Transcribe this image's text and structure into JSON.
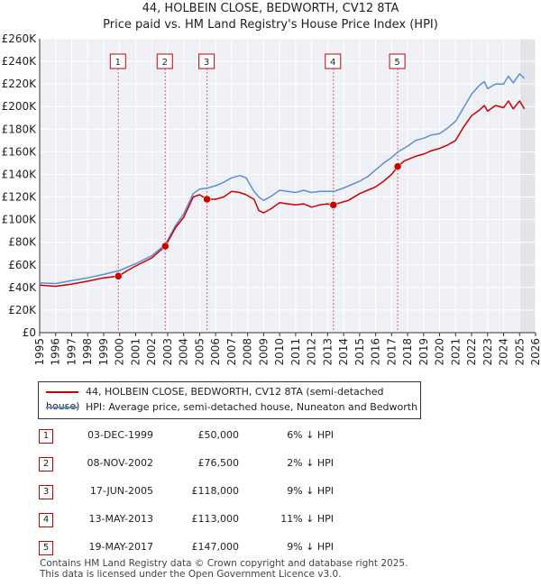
{
  "title": "44, HOLBEIN CLOSE, BEDWORTH, CV12 8TA",
  "subtitle": "Price paid vs. HM Land Registry's House Price Index (HPI)",
  "chart_data": {
    "type": "line",
    "xlim": [
      1995,
      2026
    ],
    "ylim": [
      0,
      260000
    ],
    "x_ticks": [
      "1995",
      "1996",
      "1997",
      "1998",
      "1999",
      "2000",
      "2001",
      "2002",
      "2003",
      "2004",
      "2005",
      "2006",
      "2007",
      "2008",
      "2009",
      "2010",
      "2011",
      "2012",
      "2013",
      "2014",
      "2015",
      "2016",
      "2017",
      "2018",
      "2019",
      "2020",
      "2021",
      "2022",
      "2023",
      "2024",
      "2025",
      "2026"
    ],
    "y_ticks": [
      "£0",
      "£20K",
      "£40K",
      "£60K",
      "£80K",
      "£100K",
      "£120K",
      "£140K",
      "£160K",
      "£180K",
      "£200K",
      "£220K",
      "£240K",
      "£260K"
    ],
    "y_tick_values": [
      0,
      20000,
      40000,
      60000,
      80000,
      100000,
      120000,
      140000,
      160000,
      180000,
      200000,
      220000,
      240000,
      260000
    ],
    "series": [
      {
        "name": "44, HOLBEIN CLOSE, BEDWORTH, CV12 8TA (semi-detached house)",
        "color": "#cc0000",
        "x": [
          1995.0,
          1996.0,
          1997.0,
          1998.0,
          1999.0,
          1999.92,
          2000.5,
          2001.0,
          2002.0,
          2002.85,
          2003.5,
          2004.0,
          2004.6,
          2005.0,
          2005.46,
          2006.0,
          2006.5,
          2007.0,
          2007.5,
          2007.9,
          2008.4,
          2008.7,
          2009.0,
          2009.5,
          2010.0,
          2010.5,
          2011.0,
          2011.5,
          2012.0,
          2012.5,
          2013.0,
          2013.36,
          2013.8,
          2014.3,
          2015.0,
          2015.5,
          2016.0,
          2016.5,
          2017.0,
          2017.38,
          2017.8,
          2018.5,
          2019.0,
          2019.5,
          2020.0,
          2020.5,
          2021.0,
          2021.5,
          2022.0,
          2022.5,
          2022.8,
          2023.0,
          2023.5,
          2024.0,
          2024.3,
          2024.6,
          2025.0,
          2025.3
        ],
        "values": [
          42000,
          41000,
          43000,
          45500,
          48500,
          50000,
          55000,
          59000,
          66000,
          76500,
          93000,
          102000,
          120000,
          122000,
          118000,
          118000,
          120000,
          125000,
          124000,
          122000,
          118000,
          108000,
          106000,
          110000,
          115000,
          114000,
          113000,
          114000,
          111000,
          113000,
          114000,
          113000,
          115000,
          117000,
          123000,
          126000,
          129000,
          134000,
          140000,
          147000,
          152000,
          156000,
          158000,
          161000,
          163000,
          166000,
          170000,
          182000,
          192000,
          197000,
          201000,
          196000,
          201000,
          199000,
          205000,
          198000,
          205000,
          198000
        ]
      },
      {
        "name": "HPI: Average price, semi-detached house, Nuneaton and Bedworth",
        "color": "#5b8fd6",
        "x": [
          1995.0,
          1996.0,
          1997.0,
          1998.0,
          1999.0,
          2000.0,
          2001.0,
          2002.0,
          2002.85,
          2003.5,
          2004.0,
          2004.6,
          2005.0,
          2005.5,
          2006.0,
          2006.5,
          2007.0,
          2007.5,
          2007.9,
          2008.4,
          2008.7,
          2009.0,
          2009.5,
          2010.0,
          2010.5,
          2011.0,
          2011.5,
          2012.0,
          2012.5,
          2013.0,
          2013.4,
          2014.0,
          2015.0,
          2015.5,
          2016.0,
          2016.5,
          2017.0,
          2017.4,
          2018.0,
          2018.5,
          2019.0,
          2019.5,
          2020.0,
          2020.5,
          2021.0,
          2021.5,
          2022.0,
          2022.5,
          2022.8,
          2023.0,
          2023.5,
          2024.0,
          2024.3,
          2024.6,
          2025.0,
          2025.3
        ],
        "values": [
          44000,
          43500,
          46000,
          48500,
          51500,
          55000,
          61000,
          68000,
          78000,
          95000,
          105000,
          123000,
          127000,
          128000,
          130000,
          133000,
          137000,
          139000,
          137000,
          125000,
          120000,
          117000,
          121000,
          126000,
          125000,
          124000,
          126000,
          124000,
          125000,
          125000,
          125000,
          128000,
          134000,
          138000,
          144000,
          150000,
          155000,
          160000,
          165000,
          170000,
          172000,
          175000,
          176000,
          181000,
          187000,
          199000,
          211000,
          219000,
          222000,
          216000,
          220000,
          220000,
          227000,
          221000,
          229000,
          225000
        ]
      }
    ],
    "sales": [
      {
        "label": "1",
        "x": 1999.92,
        "value": 50000
      },
      {
        "label": "2",
        "x": 2002.85,
        "value": 76500
      },
      {
        "label": "3",
        "x": 2005.46,
        "value": 118000
      },
      {
        "label": "4",
        "x": 2013.36,
        "value": 113000
      },
      {
        "label": "5",
        "x": 2017.38,
        "value": 147000
      }
    ],
    "forecast_from": 2025.0
  },
  "legend": [
    {
      "label": "44, HOLBEIN CLOSE, BEDWORTH, CV12 8TA (semi-detached house)",
      "color": "#cc0000"
    },
    {
      "label": "HPI: Average price, semi-detached house, Nuneaton and Bedworth",
      "color": "#5b8fd6"
    }
  ],
  "transactions": [
    {
      "num": "1",
      "date": "03-DEC-1999",
      "price": "£50,000",
      "hpi": "6% ↓ HPI"
    },
    {
      "num": "2",
      "date": "08-NOV-2002",
      "price": "£76,500",
      "hpi": "2% ↓ HPI"
    },
    {
      "num": "3",
      "date": "17-JUN-2005",
      "price": "£118,000",
      "hpi": "9% ↓ HPI"
    },
    {
      "num": "4",
      "date": "13-MAY-2013",
      "price": "£113,000",
      "hpi": "11% ↓ HPI"
    },
    {
      "num": "5",
      "date": "19-MAY-2017",
      "price": "£147,000",
      "hpi": "9% ↓ HPI"
    }
  ],
  "footer": {
    "line1": "Contains HM Land Registry data © Crown copyright and database right 2025.",
    "line2": "This data is licensed under the Open Government Licence v3.0."
  }
}
